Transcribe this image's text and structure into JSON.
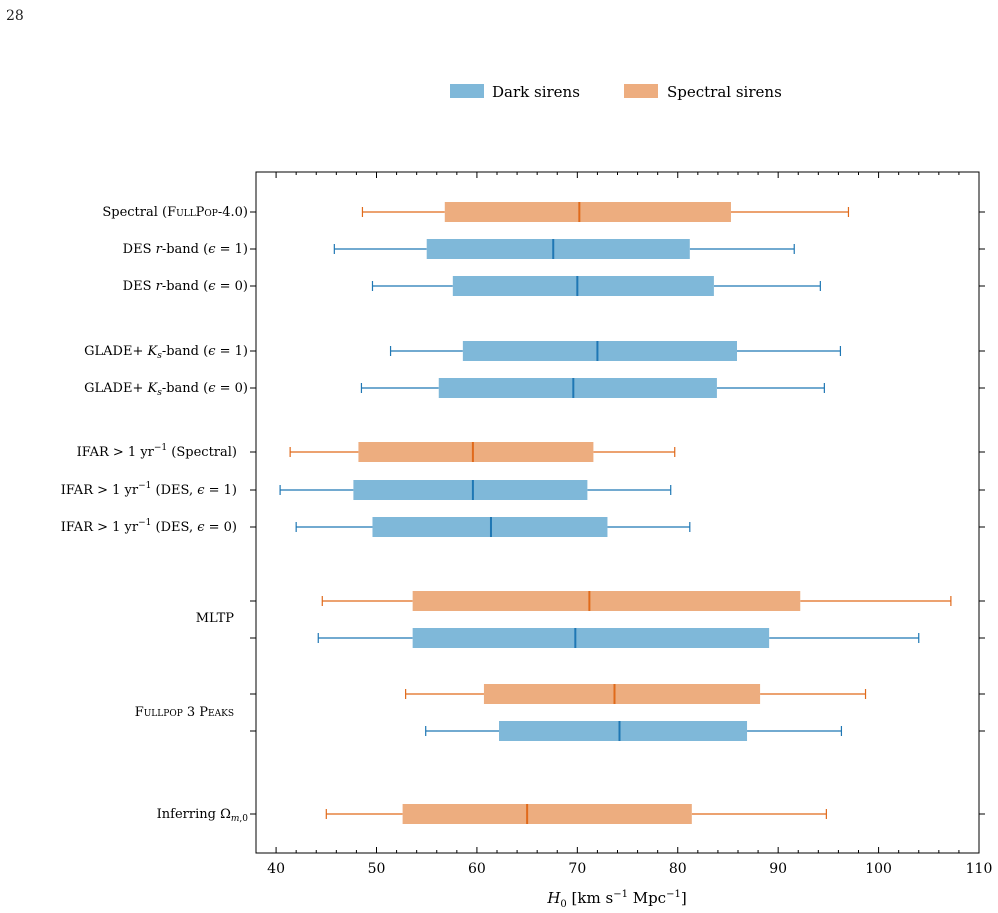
{
  "page_number": "28",
  "colors": {
    "dark": "#1f77b4",
    "dark_fill": "#7fb8d9",
    "spectral": "#e06a1b",
    "spectral_fill": "#edad7f"
  },
  "chart_data": {
    "type": "box",
    "orientation": "horizontal",
    "title": "",
    "xlabel": "H0 [km s^-1 Mpc^-1]",
    "xlim": [
      38,
      110
    ],
    "xticks": [
      40,
      50,
      60,
      70,
      80,
      90,
      100,
      110
    ],
    "grid": false,
    "legend": {
      "placement": "top-center",
      "entries": [
        {
          "name": "Dark sirens",
          "color": "#7fb8d9"
        },
        {
          "name": "Spectral sirens",
          "color": "#edad7f"
        }
      ]
    },
    "categories": [
      {
        "label": "Spectral (FullPop-4.0)",
        "boxes": [
          {
            "series": "Spectral sirens",
            "whislo": 48.6,
            "q1": 56.8,
            "med": 70.2,
            "q3": 85.3,
            "whishi": 97.0
          }
        ]
      },
      {
        "label": "DES r-band (ε = 1)",
        "boxes": [
          {
            "series": "Dark sirens",
            "whislo": 45.8,
            "q1": 55.0,
            "med": 67.6,
            "q3": 81.2,
            "whishi": 91.6
          }
        ]
      },
      {
        "label": "DES r-band (ε = 0)",
        "boxes": [
          {
            "series": "Dark sirens",
            "whislo": 49.6,
            "q1": 57.6,
            "med": 70.0,
            "q3": 83.6,
            "whishi": 94.2
          }
        ]
      },
      {
        "label": "GLADE+ Ks-band (ε = 1)",
        "boxes": [
          {
            "series": "Dark sirens",
            "whislo": 51.4,
            "q1": 58.6,
            "med": 72.0,
            "q3": 85.9,
            "whishi": 96.2
          }
        ]
      },
      {
        "label": "GLADE+ Ks-band (ε = 0)",
        "boxes": [
          {
            "series": "Dark sirens",
            "whislo": 48.5,
            "q1": 56.2,
            "med": 69.6,
            "q3": 83.9,
            "whishi": 94.6
          }
        ]
      },
      {
        "label": "IFAR > 1 yr−1 (Spectral)",
        "boxes": [
          {
            "series": "Spectral sirens",
            "whislo": 41.4,
            "q1": 48.2,
            "med": 59.6,
            "q3": 71.6,
            "whishi": 79.7
          }
        ]
      },
      {
        "label": "IFAR > 1 yr−1 (DES, ε = 1)",
        "boxes": [
          {
            "series": "Dark sirens",
            "whislo": 40.4,
            "q1": 47.7,
            "med": 59.6,
            "q3": 71.0,
            "whishi": 79.3
          }
        ]
      },
      {
        "label": "IFAR > 1 yr−1 (DES, ε = 0)",
        "boxes": [
          {
            "series": "Dark sirens",
            "whislo": 42.0,
            "q1": 49.6,
            "med": 61.4,
            "q3": 73.0,
            "whishi": 81.2
          }
        ]
      },
      {
        "label": "MLTP",
        "boxes": [
          {
            "series": "Spectral sirens",
            "whislo": 44.6,
            "q1": 53.6,
            "med": 71.2,
            "q3": 92.2,
            "whishi": 107.2
          },
          {
            "series": "Dark sirens",
            "whislo": 44.2,
            "q1": 53.6,
            "med": 69.8,
            "q3": 89.1,
            "whishi": 104.0
          }
        ]
      },
      {
        "label": "Fullpop 3 Peaks",
        "boxes": [
          {
            "series": "Spectral sirens",
            "whislo": 52.9,
            "q1": 60.7,
            "med": 73.7,
            "q3": 88.2,
            "whishi": 98.7
          },
          {
            "series": "Dark sirens",
            "whislo": 54.9,
            "q1": 62.2,
            "med": 74.2,
            "q3": 86.9,
            "whishi": 96.3
          }
        ]
      },
      {
        "label": "Inferring Ωm,0",
        "boxes": [
          {
            "series": "Spectral sirens",
            "whislo": 45.0,
            "q1": 52.6,
            "med": 65.0,
            "q3": 81.4,
            "whishi": 94.8
          }
        ]
      }
    ]
  }
}
